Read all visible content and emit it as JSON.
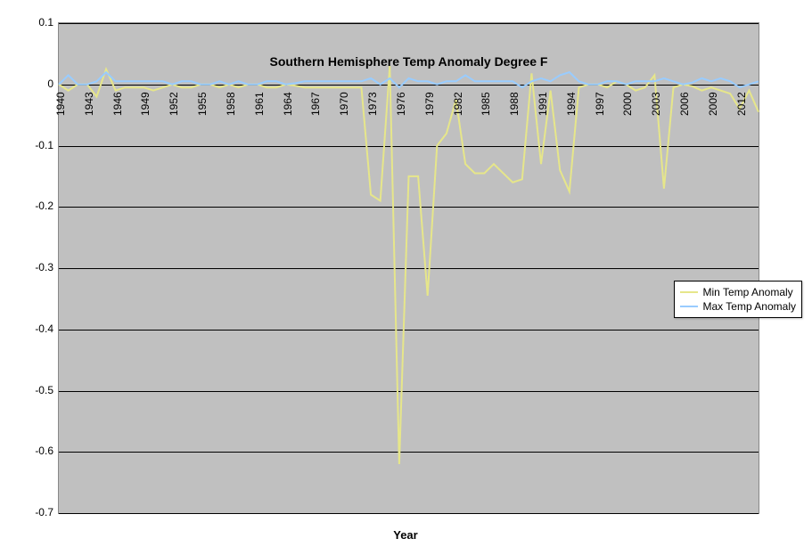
{
  "chart": {
    "type": "line",
    "title": "Southern Hemisphere Temp Anomaly Degree F",
    "title_fontsize": 14,
    "x_axis_title": "Year",
    "background_color": "#c0c0c0",
    "outer_background": "#ffffff",
    "grid_color": "#000000",
    "ylim": [
      -0.7,
      0.1
    ],
    "ytick_step": 0.1,
    "y_ticks": [
      0.1,
      0,
      -0.1,
      -0.2,
      -0.3,
      -0.4,
      -0.5,
      -0.6,
      -0.7
    ],
    "x_ticks_years": [
      1940,
      1943,
      1946,
      1949,
      1952,
      1955,
      1958,
      1961,
      1964,
      1967,
      1970,
      1973,
      1976,
      1979,
      1982,
      1985,
      1988,
      1991,
      1994,
      1997,
      2000,
      2003,
      2006,
      2009,
      2012
    ],
    "years": [
      1940,
      1941,
      1942,
      1943,
      1944,
      1945,
      1946,
      1947,
      1948,
      1949,
      1950,
      1951,
      1952,
      1953,
      1954,
      1955,
      1956,
      1957,
      1958,
      1959,
      1960,
      1961,
      1962,
      1963,
      1964,
      1965,
      1966,
      1967,
      1968,
      1969,
      1970,
      1971,
      1972,
      1973,
      1974,
      1975,
      1976,
      1977,
      1978,
      1979,
      1980,
      1981,
      1982,
      1983,
      1984,
      1985,
      1986,
      1987,
      1988,
      1989,
      1990,
      1991,
      1992,
      1993,
      1994,
      1995,
      1996,
      1997,
      1998,
      1999,
      2000,
      2001,
      2002,
      2003,
      2004,
      2005,
      2006,
      2007,
      2008,
      2009,
      2010,
      2011,
      2012,
      2013,
      2014
    ],
    "series": [
      {
        "name": "Min Temp Anomaly",
        "color": "#e6e68a",
        "line_width": 2,
        "values": [
          0.0,
          -0.01,
          0.0,
          0.0,
          -0.02,
          0.025,
          -0.01,
          -0.005,
          -0.005,
          -0.005,
          -0.01,
          -0.005,
          0.0,
          -0.005,
          -0.005,
          0.0,
          0.0,
          -0.005,
          0.0,
          -0.005,
          0.0,
          0.0,
          -0.005,
          -0.005,
          0.0,
          -0.002,
          -0.005,
          -0.005,
          -0.005,
          -0.005,
          -0.005,
          -0.005,
          -0.005,
          -0.18,
          -0.19,
          0.03,
          -0.62,
          -0.15,
          -0.15,
          -0.345,
          -0.1,
          -0.08,
          -0.025,
          -0.13,
          -0.145,
          -0.145,
          -0.13,
          -0.145,
          -0.16,
          -0.155,
          0.018,
          -0.13,
          -0.01,
          -0.14,
          -0.175,
          -0.005,
          0.0,
          0.0,
          -0.005,
          0.005,
          0.0,
          -0.01,
          -0.005,
          0.015,
          -0.17,
          -0.005,
          0.0,
          -0.003,
          -0.01,
          -0.005,
          -0.01,
          -0.015,
          -0.04,
          -0.01,
          -0.045
        ]
      },
      {
        "name": "Max Temp Anomaly",
        "color": "#99ccff",
        "line_width": 2,
        "values": [
          0.0,
          0.015,
          0.0,
          0.0,
          0.005,
          0.02,
          0.005,
          0.005,
          0.005,
          0.005,
          0.005,
          0.005,
          0.0,
          0.005,
          0.005,
          0.0,
          0.0,
          0.005,
          0.0,
          0.005,
          0.0,
          0.0,
          0.005,
          0.005,
          0.0,
          0.002,
          0.005,
          0.005,
          0.005,
          0.005,
          0.005,
          0.005,
          0.005,
          0.01,
          0.0,
          0.01,
          -0.005,
          0.01,
          0.005,
          0.005,
          0.0,
          0.005,
          0.005,
          0.015,
          0.005,
          0.005,
          0.005,
          0.005,
          0.005,
          -0.005,
          0.005,
          0.01,
          0.005,
          0.015,
          0.02,
          0.005,
          0.0,
          0.0,
          0.005,
          0.005,
          0.0,
          0.005,
          0.005,
          0.005,
          0.01,
          0.005,
          0.0,
          0.003,
          0.01,
          0.005,
          0.01,
          0.005,
          -0.005,
          0.0,
          0.005
        ]
      }
    ],
    "legend": {
      "position": "right",
      "items": [
        "Min Temp Anomaly",
        "Max Temp Anomaly"
      ]
    }
  }
}
